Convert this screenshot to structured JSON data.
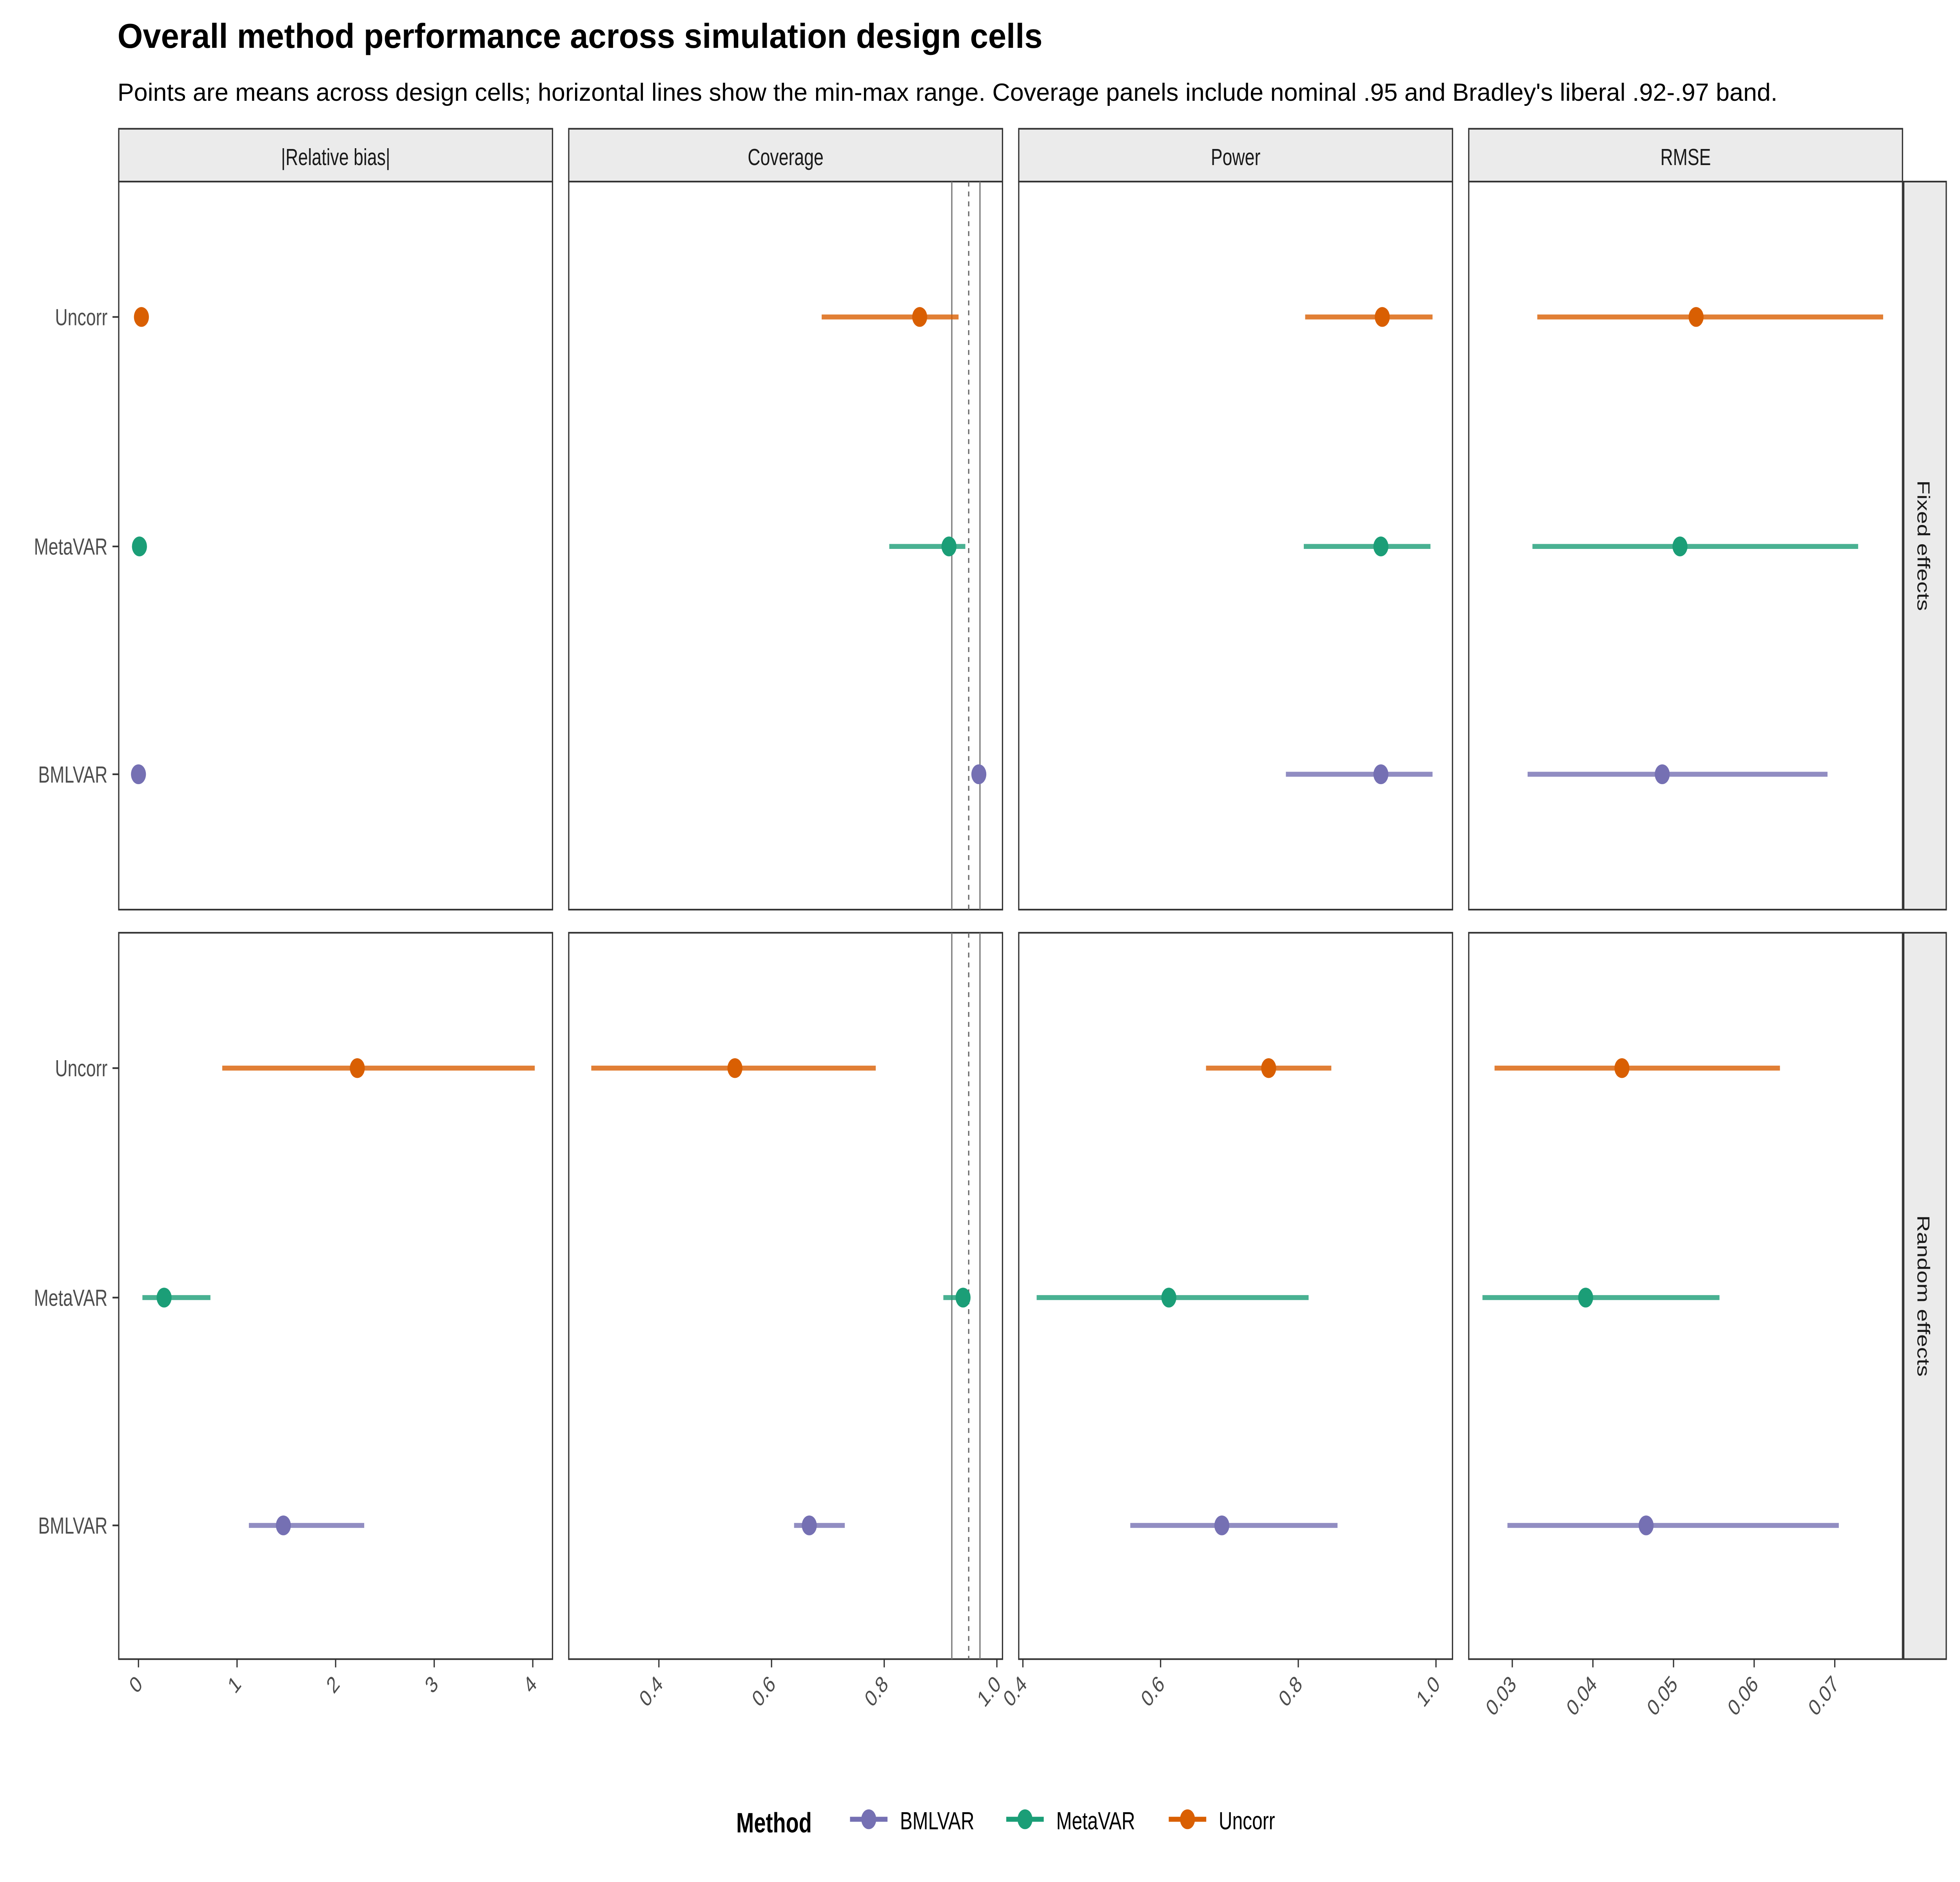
{
  "chart_data": {
    "type": "dot-range (point with min-max interval), faceted",
    "title": "Overall method performance across simulation design cells",
    "subtitle": "Points are means across design cells; horizontal lines show the min-max range. Coverage panels include nominal .95 and Bradley's liberal .92-.97 band.",
    "methods": [
      "Uncorr",
      "MetaVAR",
      "BMLVAR"
    ],
    "colors": {
      "BMLVAR": "#7570b3",
      "MetaVAR": "#1b9e77",
      "Uncorr": "#d95f02"
    },
    "legend": {
      "title": "Method",
      "position": "bottom",
      "entries": [
        "BMLVAR",
        "MetaVAR",
        "Uncorr"
      ]
    },
    "rows": [
      "Fixed effects",
      "Random effects"
    ],
    "columns": [
      {
        "label": "|Relative bias|",
        "xlim": [
          -0.2,
          4.2
        ],
        "ticks": [
          0,
          1,
          2,
          3,
          4
        ],
        "tick_labels": [
          "0",
          "1",
          "2",
          "3",
          "4"
        ],
        "reference_lines": []
      },
      {
        "label": "Coverage",
        "xlim": [
          0.24,
          1.01
        ],
        "ticks": [
          0.4,
          0.6,
          0.8,
          1.0
        ],
        "tick_labels": [
          "0.4",
          "0.6",
          "0.8",
          "1.0"
        ],
        "reference_lines": [
          {
            "value": 0.92,
            "style": "solid"
          },
          {
            "value": 0.95,
            "style": "dashed"
          },
          {
            "value": 0.97,
            "style": "solid"
          }
        ]
      },
      {
        "label": "Power",
        "xlim": [
          0.394,
          1.024
        ],
        "ticks": [
          0.4,
          0.6,
          0.8,
          1.0
        ],
        "tick_labels": [
          "0.4",
          "0.6",
          "0.8",
          "1.0"
        ],
        "reference_lines": []
      },
      {
        "label": "RMSE",
        "xlim": [
          0.0246,
          0.0784
        ],
        "ticks": [
          0.03,
          0.04,
          0.05,
          0.06,
          0.07
        ],
        "tick_labels": [
          "0.03",
          "0.04",
          "0.05",
          "0.06",
          "0.07"
        ],
        "reference_lines": []
      }
    ],
    "panels": [
      {
        "row": "Fixed effects",
        "column": "|Relative bias|",
        "data": {
          "Uncorr": {
            "mean": 0.03,
            "min": 0.02,
            "max": 0.04
          },
          "MetaVAR": {
            "mean": 0.01,
            "min": 0.005,
            "max": 0.015
          },
          "BMLVAR": {
            "mean": 0.0,
            "min": 0.0,
            "max": 0.005
          }
        }
      },
      {
        "row": "Fixed effects",
        "column": "Coverage",
        "data": {
          "Uncorr": {
            "mean": 0.863,
            "min": 0.689,
            "max": 0.932
          },
          "MetaVAR": {
            "mean": 0.915,
            "min": 0.809,
            "max": 0.944
          },
          "BMLVAR": {
            "mean": 0.968,
            "min": 0.964,
            "max": 0.971
          }
        }
      },
      {
        "row": "Fixed effects",
        "column": "Power",
        "data": {
          "Uncorr": {
            "mean": 0.922,
            "min": 0.81,
            "max": 0.995
          },
          "MetaVAR": {
            "mean": 0.92,
            "min": 0.808,
            "max": 0.992
          },
          "BMLVAR": {
            "mean": 0.92,
            "min": 0.782,
            "max": 0.995
          }
        }
      },
      {
        "row": "Fixed effects",
        "column": "RMSE",
        "data": {
          "Uncorr": {
            "mean": 0.0528,
            "min": 0.0331,
            "max": 0.076
          },
          "MetaVAR": {
            "mean": 0.0508,
            "min": 0.0325,
            "max": 0.0729
          },
          "BMLVAR": {
            "mean": 0.0486,
            "min": 0.0319,
            "max": 0.0691
          }
        }
      },
      {
        "row": "Random effects",
        "column": "|Relative bias|",
        "data": {
          "Uncorr": {
            "mean": 2.22,
            "min": 0.85,
            "max": 4.02
          },
          "MetaVAR": {
            "mean": 0.26,
            "min": 0.04,
            "max": 0.73
          },
          "BMLVAR": {
            "mean": 1.47,
            "min": 1.12,
            "max": 2.29
          }
        }
      },
      {
        "row": "Random effects",
        "column": "Coverage",
        "data": {
          "Uncorr": {
            "mean": 0.535,
            "min": 0.28,
            "max": 0.785
          },
          "MetaVAR": {
            "mean": 0.94,
            "min": 0.905,
            "max": 0.945
          },
          "BMLVAR": {
            "mean": 0.667,
            "min": 0.64,
            "max": 0.73
          }
        }
      },
      {
        "row": "Random effects",
        "column": "Power",
        "data": {
          "Uncorr": {
            "mean": 0.757,
            "min": 0.666,
            "max": 0.848
          },
          "MetaVAR": {
            "mean": 0.612,
            "min": 0.42,
            "max": 0.815
          },
          "BMLVAR": {
            "mean": 0.689,
            "min": 0.556,
            "max": 0.857
          }
        }
      },
      {
        "row": "Random effects",
        "column": "RMSE",
        "data": {
          "Uncorr": {
            "mean": 0.0436,
            "min": 0.0278,
            "max": 0.0632
          },
          "MetaVAR": {
            "mean": 0.0391,
            "min": 0.0263,
            "max": 0.0557
          },
          "BMLVAR": {
            "mean": 0.0466,
            "min": 0.0294,
            "max": 0.0705
          }
        }
      }
    ]
  }
}
